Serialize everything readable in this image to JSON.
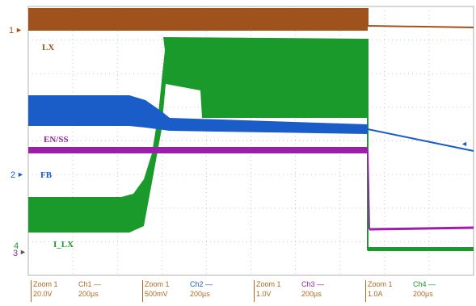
{
  "channels": {
    "lx": {
      "label": "LX",
      "color": "#a0521c"
    },
    "en_ss": {
      "label": "EN/SS",
      "color": "#9b1fa8"
    },
    "fb": {
      "label": "FB",
      "color": "#1a5cc8"
    },
    "i_lx": {
      "label": "I_LX",
      "color": "#1a9a2a"
    }
  },
  "markers": {
    "m1": "1",
    "m2": "2",
    "m3": "3",
    "m4": "4"
  },
  "footer": [
    {
      "zoom": "Zoom 1",
      "channel": "Ch1 —",
      "scale": "20.0V",
      "time": "200µs",
      "color": "#a0521c"
    },
    {
      "zoom": "Zoom 1",
      "channel": "Ch2 —",
      "scale": "500mV",
      "time": "200µs",
      "color": "#1a5cc8"
    },
    {
      "zoom": "Zoom 1",
      "channel": "Ch3 —",
      "scale": "1.0V",
      "time": "200µs",
      "color": "#9b1fa8"
    },
    {
      "zoom": "Zoom 1",
      "channel": "Ch4 —",
      "scale": "1.0A",
      "time": "200µs",
      "color": "#1a9a2a"
    }
  ]
}
